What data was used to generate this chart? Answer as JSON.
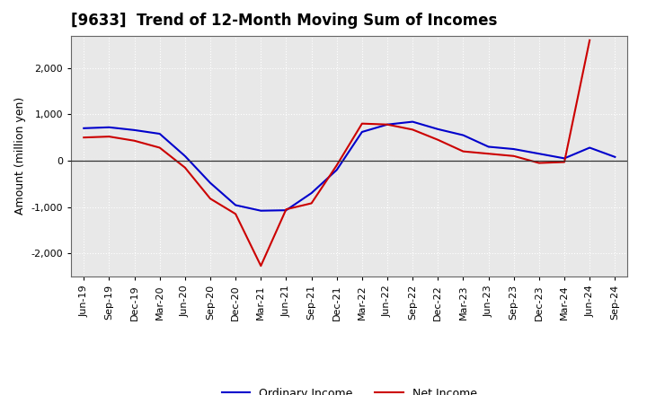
{
  "title": "[9633]  Trend of 12-Month Moving Sum of Incomes",
  "ylabel": "Amount (million yen)",
  "x_labels": [
    "Jun-19",
    "Sep-19",
    "Dec-19",
    "Mar-20",
    "Jun-20",
    "Sep-20",
    "Dec-20",
    "Mar-21",
    "Jun-21",
    "Sep-21",
    "Dec-21",
    "Mar-22",
    "Jun-22",
    "Sep-22",
    "Dec-22",
    "Mar-23",
    "Jun-23",
    "Sep-23",
    "Dec-23",
    "Mar-24",
    "Jun-24",
    "Sep-24"
  ],
  "ordinary_income": [
    700,
    720,
    660,
    580,
    100,
    -480,
    -960,
    -1080,
    -1070,
    -700,
    -200,
    620,
    780,
    840,
    680,
    550,
    300,
    250,
    150,
    50,
    280,
    80
  ],
  "net_income": [
    500,
    520,
    430,
    280,
    -150,
    -820,
    -1150,
    -2270,
    -1050,
    -920,
    -100,
    800,
    780,
    670,
    450,
    200,
    150,
    100,
    -50,
    -30,
    2600,
    null
  ],
  "ordinary_color": "#0000CC",
  "net_color": "#CC0000",
  "ylim": [
    -2500,
    2700
  ],
  "yticks": [
    -2000,
    -1000,
    0,
    1000,
    2000
  ],
  "plot_bg_color": "#E8E8E8",
  "background_color": "#FFFFFF",
  "grid_color": "#FFFFFF",
  "title_fontsize": 12,
  "axis_label_fontsize": 9,
  "tick_fontsize": 8
}
